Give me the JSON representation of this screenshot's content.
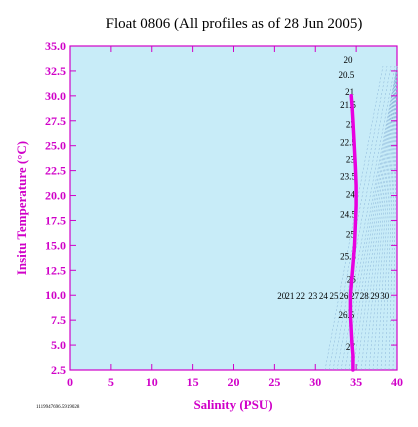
{
  "chart_data": {
    "type": "line",
    "title": "Float 0806  (All profiles as of 28 Jun 2005)",
    "xlabel": "Salinity (PSU)",
    "ylabel": "Insitu Temperature (°C)",
    "xlim": [
      0,
      40
    ],
    "ylim": [
      2.5,
      35.0
    ],
    "x_ticks": [
      "0",
      "5",
      "10",
      "15",
      "20",
      "25",
      "30",
      "35",
      "40"
    ],
    "y_ticks": [
      "2.5",
      "5.0",
      "7.5",
      "10.0",
      "12.5",
      "15.0",
      "17.5",
      "20.0",
      "22.5",
      "25.0",
      "27.5",
      "30.0",
      "32.5",
      "35.0"
    ],
    "footnote": "1119947696.5919028",
    "colors": {
      "line": "#e800e0",
      "axis": "#d000c8",
      "plot_bg": "#c8ecf8",
      "contour": "#8ab4d8"
    },
    "series": [
      {
        "x": [
          34.4,
          34.5,
          34.6,
          34.7,
          34.8,
          34.9,
          35.0,
          35.0,
          34.9,
          34.8,
          34.6,
          34.4,
          34.3,
          34.3,
          34.4,
          34.5,
          34.6,
          34.6,
          34.6
        ],
        "y": [
          30.0,
          29.0,
          27.5,
          26.0,
          24.5,
          23.0,
          21.0,
          19.0,
          17.0,
          15.0,
          13.0,
          11.0,
          10.0,
          8.0,
          6.5,
          5.0,
          4.0,
          3.0,
          2.5
        ]
      }
    ],
    "density_labels": [
      {
        "text": "20",
        "x": 34.0,
        "y": 33.3
      },
      {
        "text": "20.5",
        "x": 33.8,
        "y": 31.8
      },
      {
        "text": "21",
        "x": 34.2,
        "y": 30.1
      },
      {
        "text": "21.5",
        "x": 34.0,
        "y": 28.8
      },
      {
        "text": "22",
        "x": 34.3,
        "y": 26.8
      },
      {
        "text": "22.5",
        "x": 34.0,
        "y": 25.0
      },
      {
        "text": "23",
        "x": 34.3,
        "y": 23.3
      },
      {
        "text": "23.5",
        "x": 34.0,
        "y": 21.6
      },
      {
        "text": "24",
        "x": 34.3,
        "y": 19.8
      },
      {
        "text": "24.5",
        "x": 34.0,
        "y": 17.8
      },
      {
        "text": "25",
        "x": 34.3,
        "y": 15.8
      },
      {
        "text": "25.5",
        "x": 34.0,
        "y": 13.6
      },
      {
        "text": "26",
        "x": 34.4,
        "y": 11.3
      },
      {
        "text": "26.5",
        "x": 33.8,
        "y": 7.7
      },
      {
        "text": "27",
        "x": 34.3,
        "y": 4.5
      }
    ],
    "row_labels": [
      {
        "text": "20",
        "x": 25.9
      },
      {
        "text": "21",
        "x": 26.9
      },
      {
        "text": "22",
        "x": 28.2
      },
      {
        "text": "23",
        "x": 29.7
      },
      {
        "text": "24",
        "x": 31.0
      },
      {
        "text": "25",
        "x": 32.3
      },
      {
        "text": "26",
        "x": 33.5
      },
      {
        "text": "27",
        "x": 34.8
      },
      {
        "text": "28",
        "x": 36.0
      },
      {
        "text": "29",
        "x": 37.3
      },
      {
        "text": "30",
        "x": 38.5
      }
    ],
    "row_labels_y": 10.0
  }
}
